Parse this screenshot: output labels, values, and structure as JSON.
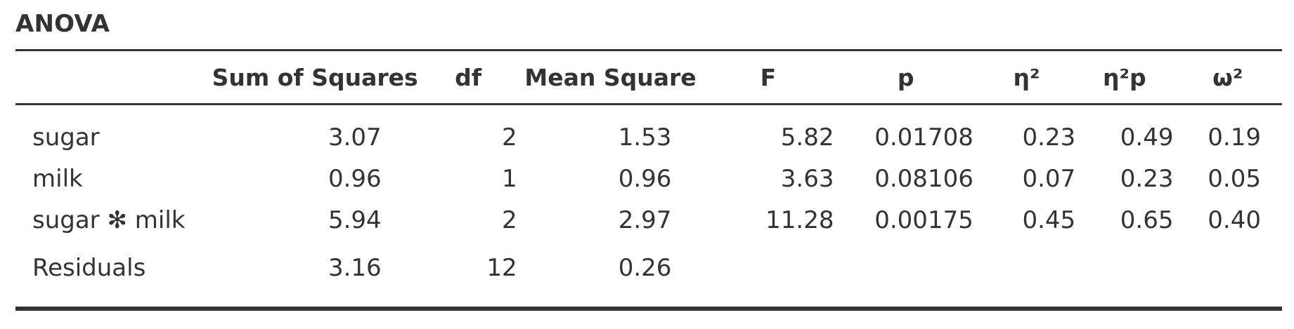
{
  "title": "ANOVA",
  "columns": [
    "",
    "Sum of Squares",
    "df",
    "Mean Square",
    "F",
    "p",
    "η²",
    "η²p",
    "ω²"
  ],
  "rows": [
    {
      "term": "sugar",
      "ss": "3.07",
      "df": "2",
      "ms": "1.53",
      "f": "5.82",
      "p": "0.01708",
      "eta2": "0.23",
      "eta2p": "0.49",
      "omega2": "0.19"
    },
    {
      "term": "milk",
      "ss": "0.96",
      "df": "1",
      "ms": "0.96",
      "f": "3.63",
      "p": "0.08106",
      "eta2": "0.07",
      "eta2p": "0.23",
      "omega2": "0.05"
    },
    {
      "term": "sugar ✻ milk",
      "ss": "5.94",
      "df": "2",
      "ms": "2.97",
      "f": "11.28",
      "p": "0.00175",
      "eta2": "0.45",
      "eta2p": "0.65",
      "omega2": "0.40"
    },
    {
      "term": "Residuals",
      "ss": "3.16",
      "df": "12",
      "ms": "0.26",
      "f": "",
      "p": "",
      "eta2": "",
      "eta2p": "",
      "omega2": ""
    }
  ]
}
